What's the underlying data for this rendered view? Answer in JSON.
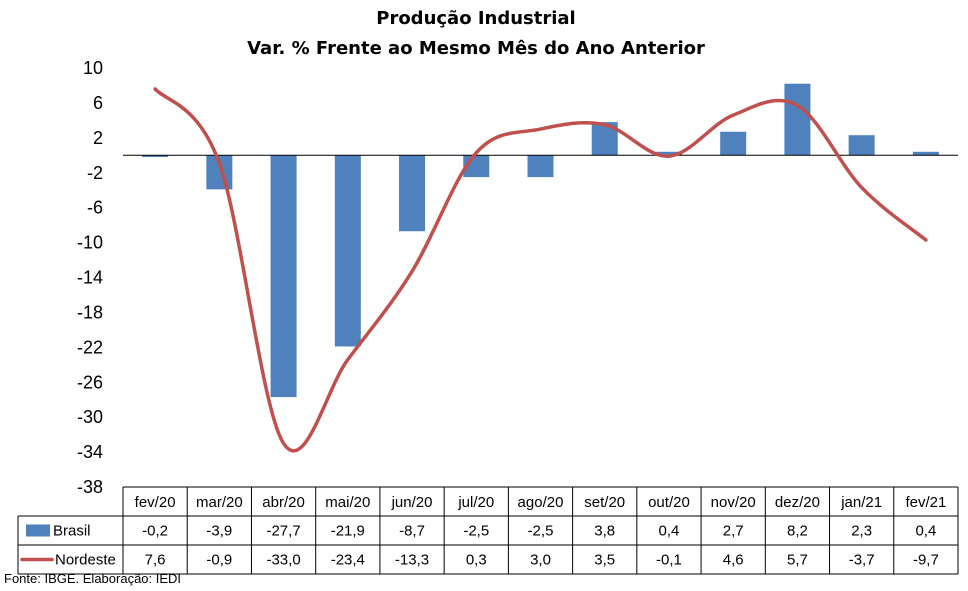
{
  "source_note": "Fonte: IBGE. Elaboração: IEDI",
  "chart_data": {
    "type": "bar",
    "title": "Produção Industrial",
    "subtitle": "Var. % Frente ao Mesmo Mês do Ano Anterior",
    "categories": [
      "fev/20",
      "mar/20",
      "abr/20",
      "mai/20",
      "jun/20",
      "jul/20",
      "ago/20",
      "set/20",
      "out/20",
      "nov/20",
      "dez/20",
      "jan/21",
      "fev/21"
    ],
    "ylim": [
      -38,
      10
    ],
    "yticks": [
      10,
      6,
      2,
      -2,
      -6,
      -10,
      -14,
      -18,
      -22,
      -26,
      -30,
      -34,
      -38
    ],
    "grid": false,
    "legend": "in-table",
    "series": [
      {
        "name": "Brasil",
        "type": "bar",
        "color": "#4f81bd",
        "values": [
          -0.2,
          -3.9,
          -27.7,
          -21.9,
          -8.7,
          -2.5,
          -2.5,
          3.8,
          0.4,
          2.7,
          8.2,
          2.3,
          0.4
        ],
        "labels": [
          "-0,2",
          "-3,9",
          "-27,7",
          "-21,9",
          "-8,7",
          "-2,5",
          "-2,5",
          "3,8",
          "0,4",
          "2,7",
          "8,2",
          "2,3",
          "0,4"
        ]
      },
      {
        "name": "Nordeste",
        "type": "line",
        "color": "#c0504d",
        "values": [
          7.6,
          -0.9,
          -33.0,
          -23.4,
          -13.3,
          0.3,
          3.0,
          3.5,
          -0.1,
          4.6,
          5.7,
          -3.7,
          -9.7
        ],
        "labels": [
          "7,6",
          "-0,9",
          "-33,0",
          "-23,4",
          "-13,3",
          "0,3",
          "3,0",
          "3,5",
          "-0,1",
          "4,6",
          "5,7",
          "-3,7",
          "-9,7"
        ]
      }
    ]
  }
}
